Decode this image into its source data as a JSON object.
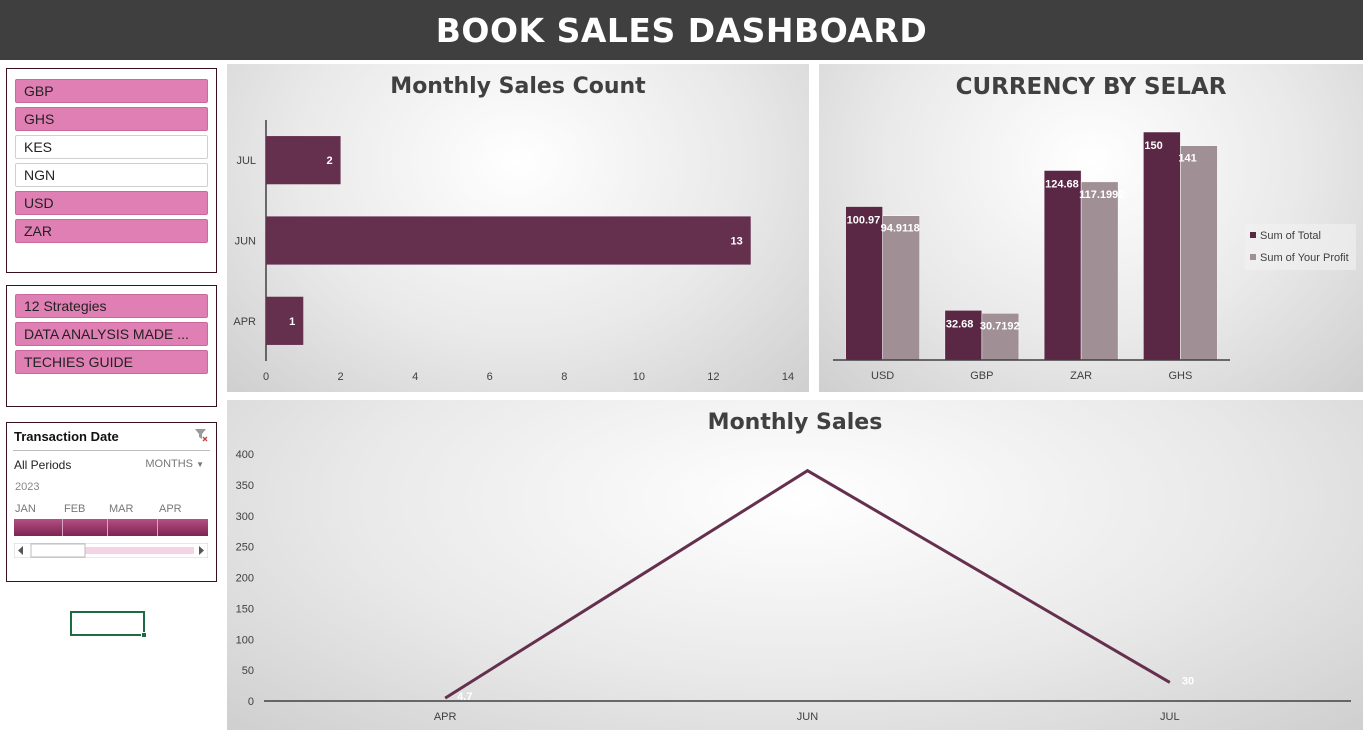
{
  "header": {
    "title": "BOOK SALES DASHBOARD"
  },
  "colors": {
    "header_bg": "#3f3f3f",
    "bar_primary": "#652f4e",
    "bar_secondary": "#a09096",
    "slicer_on": "#e07fb3"
  },
  "currency_slicer": {
    "items": [
      {
        "label": "GBP",
        "selected": true
      },
      {
        "label": "GHS",
        "selected": true
      },
      {
        "label": "KES",
        "selected": false
      },
      {
        "label": "NGN",
        "selected": false
      },
      {
        "label": "USD",
        "selected": true
      },
      {
        "label": "ZAR",
        "selected": true
      }
    ]
  },
  "product_slicer": {
    "items": [
      {
        "label": "12 Strategies",
        "selected": true
      },
      {
        "label": "DATA ANALYSIS MADE ...",
        "selected": true
      },
      {
        "label": "TECHIES GUIDE",
        "selected": true
      }
    ]
  },
  "timeline": {
    "title": "Transaction Date",
    "periods": "All Periods",
    "level": "MONTHS",
    "year": "2023",
    "months": [
      "JAN",
      "FEB",
      "MAR",
      "APR"
    ],
    "filter_icon": "clear-filter-icon"
  },
  "chart_data": [
    {
      "type": "bar",
      "orientation": "horizontal",
      "title": "Monthly Sales Count",
      "categories": [
        "JUL",
        "JUN",
        "APR"
      ],
      "values": [
        2,
        13,
        1
      ],
      "data_labels": [
        "2",
        "13",
        "1"
      ],
      "x_ticks": [
        "0",
        "2",
        "4",
        "6",
        "8",
        "10",
        "12",
        "14"
      ],
      "xlim": [
        0,
        14
      ],
      "grid": false
    },
    {
      "type": "bar",
      "title": "CURRENCY BY SELAR",
      "categories": [
        "USD",
        "GBP",
        "ZAR",
        "GHS"
      ],
      "series": [
        {
          "name": "Sum of Total",
          "values": [
            100.97,
            32.68,
            124.68,
            150
          ],
          "labels": [
            "100.97",
            "32.68",
            "124.68",
            "150"
          ],
          "color": "#5a2745"
        },
        {
          "name": "Sum of Your Profit",
          "values": [
            94.9118,
            30.7192,
            117.1992,
            141
          ],
          "labels": [
            "94.9118",
            "30.7192",
            "117.1992",
            "141"
          ],
          "color": "#a09096"
        }
      ],
      "ylim": [
        0,
        160
      ],
      "legend": "right",
      "grid": false
    },
    {
      "type": "line",
      "title": "Monthly Sales",
      "categories": [
        "APR",
        "JUN",
        "JUL"
      ],
      "values": [
        4.7,
        373,
        30
      ],
      "data_labels": [
        "4.7",
        "",
        "30"
      ],
      "y_ticks": [
        "0",
        "50",
        "100",
        "150",
        "200",
        "250",
        "300",
        "350",
        "400"
      ],
      "ylim": [
        0,
        400
      ],
      "grid": false
    }
  ]
}
